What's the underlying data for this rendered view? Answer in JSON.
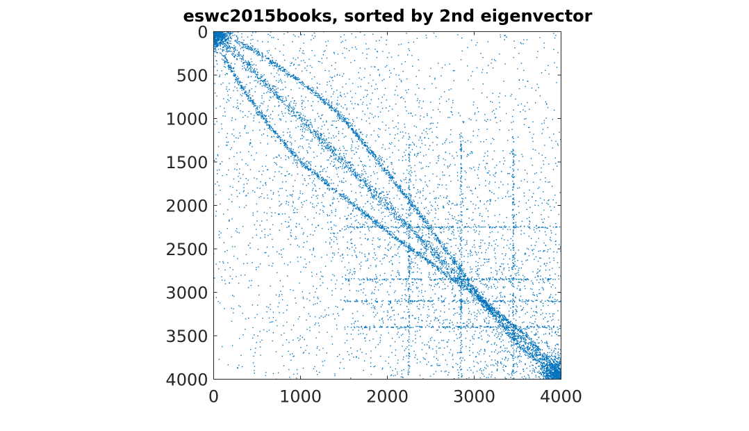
{
  "chart_data": {
    "type": "scatter",
    "title": "eswc2015books, sorted by 2nd eigenvector",
    "xlabel": "",
    "ylabel": "",
    "xlim": [
      0,
      4000
    ],
    "ylim": [
      0,
      4000
    ],
    "y_axis_reversed": true,
    "aspect": "equal",
    "grid": false,
    "legend": "none",
    "x_ticks": [
      "0",
      "1000",
      "2000",
      "3000",
      "4000"
    ],
    "y_ticks": [
      "0",
      "500",
      "1000",
      "1500",
      "2000",
      "2500",
      "3000",
      "3500",
      "4000"
    ],
    "x_tick_values": [
      0,
      1000,
      2000,
      3000,
      4000
    ],
    "y_tick_values": [
      0,
      500,
      1000,
      1500,
      2000,
      2500,
      3000,
      3500,
      4000
    ],
    "marker_color": "#0072BD",
    "description_of_pattern": {
      "matrix_size": 4000,
      "symmetric": true,
      "band_structure": [
        {
          "kind": "diagonal_band",
          "from": [
            0,
            0
          ],
          "to": [
            4000,
            4000
          ]
        },
        {
          "kind": "curved_band",
          "points": [
            [
              250,
              100
            ],
            [
              600,
              300
            ],
            [
              1100,
              650
            ],
            [
              1500,
              1000
            ],
            [
              1900,
              1500
            ],
            [
              2300,
              2000
            ],
            [
              2700,
              2550
            ],
            [
              3100,
              3100
            ],
            [
              3500,
              3600
            ],
            [
              3900,
              3950
            ]
          ]
        },
        {
          "kind": "curved_band",
          "points": [
            [
              100,
              250
            ],
            [
              300,
              600
            ],
            [
              650,
              1100
            ],
            [
              1000,
              1500
            ],
            [
              1500,
              1900
            ],
            [
              2000,
              2300
            ],
            [
              2550,
              2700
            ],
            [
              3100,
              3100
            ],
            [
              3600,
              3500
            ],
            [
              3950,
              3900
            ]
          ]
        }
      ],
      "dense_corners": [
        [
          0,
          0
        ],
        [
          4000,
          4000
        ]
      ],
      "horizontal_streaks_y": [
        2250,
        2850,
        3100,
        3400
      ],
      "vertical_streaks_x": [
        2250,
        2850,
        3450
      ]
    }
  }
}
